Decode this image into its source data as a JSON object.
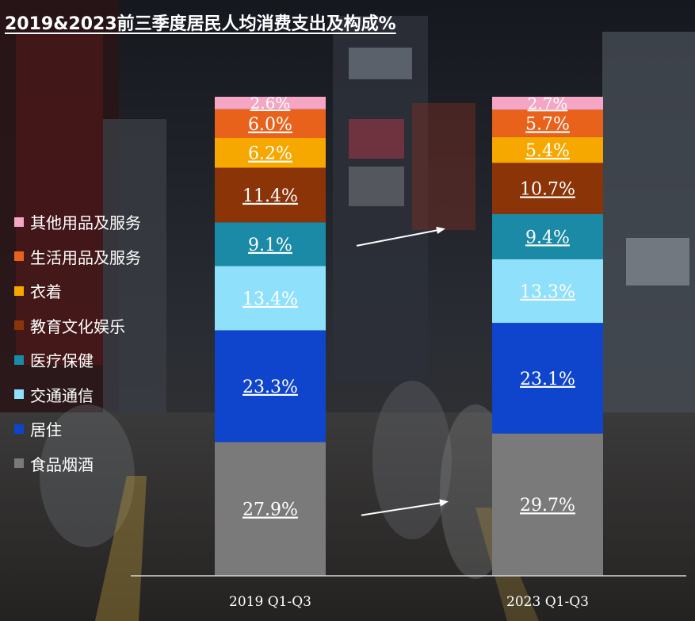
{
  "title": "2019&2023前三季度居民人均消费支出及构成%",
  "colors": {
    "其他用品及服务": "#f4a6c4",
    "生活用品及服务": "#e8621c",
    "衣着": "#f6a800",
    "教育文化娱乐": "#8b3408",
    "医疗保健": "#1a8aa6",
    "交通通信": "#8fe0fb",
    "居住": "#0f44cc",
    "食品烟酒": "#7a7a7a"
  },
  "legend": [
    "其他用品及服务",
    "生活用品及服务",
    "衣着",
    "教育文化娱乐",
    "医疗保健",
    "交通通信",
    "居住",
    "食品烟酒"
  ],
  "chart_data": {
    "type": "bar",
    "stacked": true,
    "title": "2019&2023前三季度居民人均消费支出及构成%",
    "categories": [
      "2019 Q1-Q3",
      "2023 Q1-Q3"
    ],
    "series": [
      {
        "name": "食品烟酒",
        "values": [
          27.9,
          29.7
        ],
        "labels": [
          "27.9%",
          "29.7%"
        ]
      },
      {
        "name": "居住",
        "values": [
          23.3,
          23.1
        ],
        "labels": [
          "23.3%",
          "23.1%"
        ]
      },
      {
        "name": "交通通信",
        "values": [
          13.4,
          13.3
        ],
        "labels": [
          "13.4%",
          "13.3%"
        ]
      },
      {
        "name": "医疗保健",
        "values": [
          9.1,
          9.4
        ],
        "labels": [
          "9.1%",
          "9.4%"
        ]
      },
      {
        "name": "教育文化娱乐",
        "values": [
          11.4,
          10.7
        ],
        "labels": [
          "11.4%",
          "10.7%"
        ]
      },
      {
        "name": "衣着",
        "values": [
          6.2,
          5.4
        ],
        "labels": [
          "6.2%",
          "5.4%"
        ]
      },
      {
        "name": "生活用品及服务",
        "values": [
          6.0,
          5.7
        ],
        "labels": [
          "6.0%",
          "5.7%"
        ]
      },
      {
        "name": "其他用品及服务",
        "values": [
          2.6,
          2.7
        ],
        "labels": [
          "2.6%",
          "2.7%"
        ]
      }
    ],
    "ylim": [
      0,
      100
    ],
    "legend_position": "left",
    "grid": false,
    "annotations": [
      "arrow: 医疗保健 2019→2023",
      "arrow: 食品烟酒 2019→2023"
    ]
  }
}
